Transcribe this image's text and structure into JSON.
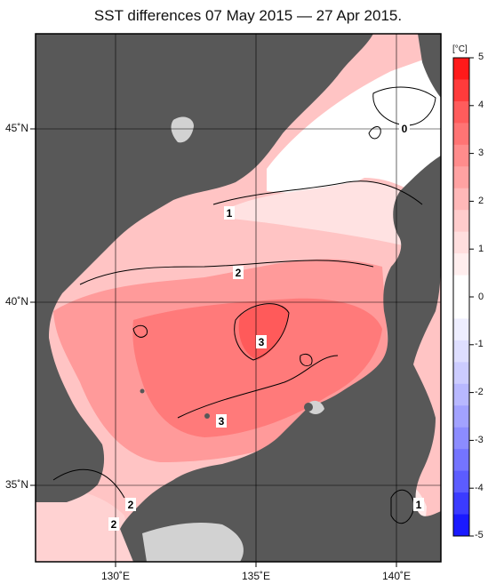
{
  "title": "SST differences 07 May 2015 — 27 Apr 2015.",
  "map": {
    "lat_labels": [
      "45˚N",
      "40˚N",
      "35˚N"
    ],
    "lon_labels": [
      "130˚E",
      "135˚E",
      "140˚E"
    ],
    "contour_labels": [
      "0",
      "1",
      "2",
      "3",
      "3",
      "2",
      "2",
      "1"
    ],
    "colors": {
      "land": "#585858",
      "no_data": "#d2d2d2",
      "contour": "#000000"
    }
  },
  "colorbar": {
    "unit": "[°C]",
    "ticks": [
      "5",
      "4",
      "3",
      "2",
      "1",
      "0",
      "-1",
      "-2",
      "-3",
      "-4",
      "-5"
    ],
    "colors": [
      "#ff1a1a",
      "#ff3b3b",
      "#ff5c5c",
      "#ff7474",
      "#ff8c8c",
      "#ffa2a2",
      "#ffb8b8",
      "#ffcccc",
      "#ffdede",
      "#ffeeee",
      "#ffffff",
      "#ffffff",
      "#eeeeff",
      "#dedeff",
      "#ccccff",
      "#b8b8ff",
      "#a2a2ff",
      "#8c8cff",
      "#7474ff",
      "#5c5cff",
      "#3b3bff",
      "#1a1aff"
    ]
  }
}
